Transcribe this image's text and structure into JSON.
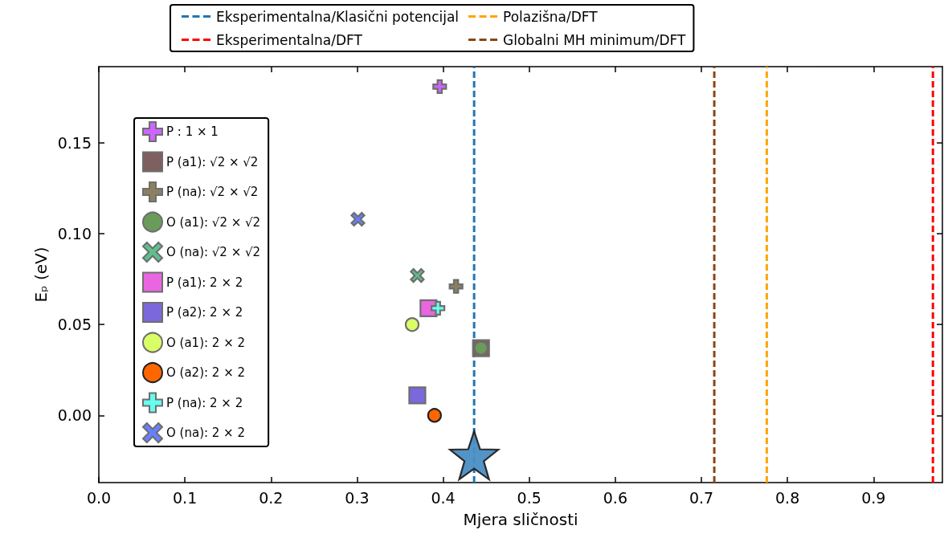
{
  "chart_data": {
    "type": "scatter",
    "xlabel": "Mjera sličnosti",
    "ylabel": "Eₚ (eV)",
    "xlim": [
      0,
      0.98
    ],
    "ylim": [
      -0.037,
      0.192
    ],
    "xticks": [
      {
        "value": 0,
        "label": "0.0"
      },
      {
        "value": 0.1,
        "label": "0.1"
      },
      {
        "value": 0.2,
        "label": "0.2"
      },
      {
        "value": 0.3,
        "label": "0.3"
      },
      {
        "value": 0.4,
        "label": "0.4"
      },
      {
        "value": 0.5,
        "label": "0.5"
      },
      {
        "value": 0.6,
        "label": "0.6"
      },
      {
        "value": 0.7,
        "label": "0.7"
      },
      {
        "value": 0.8,
        "label": "0.8"
      },
      {
        "value": 0.9,
        "label": "0.9"
      }
    ],
    "yticks": [
      {
        "value": 0,
        "label": "0.00"
      },
      {
        "value": 0.05,
        "label": "0.05"
      },
      {
        "value": 0.1,
        "label": "0.10"
      },
      {
        "value": 0.15,
        "label": "0.15"
      }
    ],
    "grid": false,
    "legend": "center left",
    "series": [
      {
        "name": "P : 1 × 1",
        "color": "#cc66ff",
        "marker": "cross",
        "x": [
          0.396
        ],
        "values": [
          0.181
        ]
      },
      {
        "name": "P (a1): √2 × √2",
        "color": "#7f6060",
        "marker": "square",
        "x": [
          0.444
        ],
        "values": [
          0.037
        ]
      },
      {
        "name": "P (na): √2 × √2",
        "color": "#8b8060",
        "marker": "cross",
        "x": [
          0.415
        ],
        "values": [
          0.071
        ]
      },
      {
        "name": "O (a1): √2 × √2",
        "color": "#6b9b5b",
        "marker": "circle",
        "x": [
          0.444
        ],
        "values": [
          0.037
        ]
      },
      {
        "name": "O (na): √2 × √2",
        "color": "#5fbf8f",
        "marker": "x",
        "x": [
          0.37
        ],
        "values": [
          0.077
        ]
      },
      {
        "name": "P (a1): 2 × 2",
        "color": "#e966e0",
        "marker": "square",
        "x": [
          0.383
        ],
        "values": [
          0.059
        ]
      },
      {
        "name": "P (a2): 2 × 2",
        "color": "#7b68dd",
        "marker": "square",
        "x": [
          0.37
        ],
        "values": [
          0.011
        ]
      },
      {
        "name": "O (a1): 2 × 2",
        "color": "#d9ff66",
        "marker": "circle",
        "x": [
          0.364
        ],
        "values": [
          0.05
        ]
      },
      {
        "name": "O (a2): 2 × 2",
        "color": "#ff6600",
        "marker": "circle",
        "x": [
          0.39
        ],
        "values": [
          0
        ]
      },
      {
        "name": "P (na): 2 × 2",
        "color": "#66ffee",
        "marker": "cross",
        "x": [
          0.394
        ],
        "values": [
          0.059
        ]
      },
      {
        "name": "O (na): 2 × 2",
        "color": "#6680ff",
        "marker": "x",
        "x": [
          0.301
        ],
        "values": [
          0.108
        ]
      },
      {
        "color": "#4a8ec4",
        "marker": "star",
        "x": [
          0.436
        ],
        "values": [
          -0.022
        ]
      }
    ],
    "ref_lines": [
      {
        "axis": "x",
        "value": 0.436,
        "label": "Eksperimentalna/Klasični potencijal",
        "color": "#1f77b4",
        "line_style": "dashed"
      },
      {
        "axis": "x",
        "value": 0.969,
        "label": "Eksperimentalna/DFT",
        "color": "#ff0000",
        "line_style": "dashed"
      },
      {
        "axis": "x",
        "value": 0.776,
        "label": "Polazišna/DFT",
        "color": "#ffa500",
        "line_style": "dashed"
      },
      {
        "axis": "x",
        "value": 0.715,
        "label": "Globalni MH minimum/DFT",
        "color": "#8b4513",
        "line_style": "dashed"
      }
    ]
  }
}
